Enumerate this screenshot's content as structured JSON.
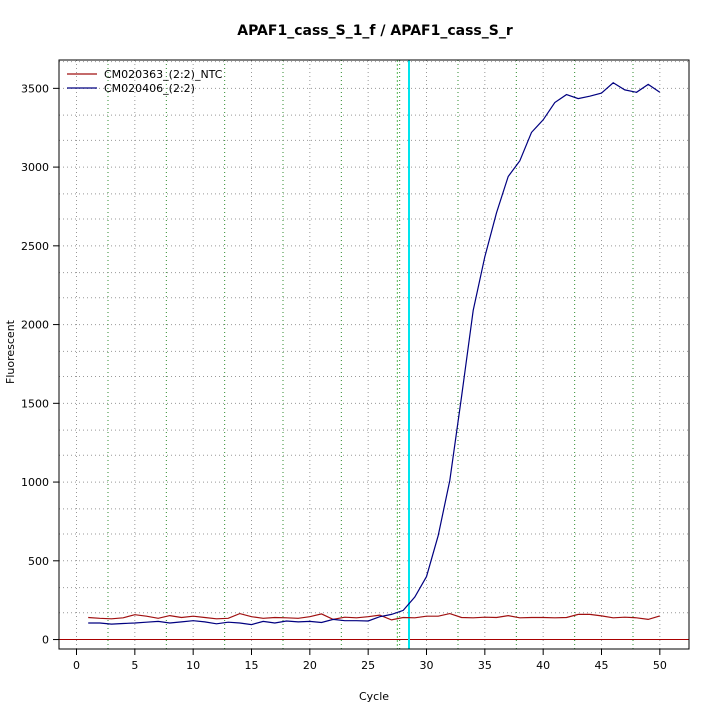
{
  "chart_data": {
    "type": "line",
    "title": "APAF1_cass_S_1_f / APAF1_cass_S_r",
    "xlabel": "Cycle",
    "ylabel": "Fluorescent",
    "xlim": [
      -1.5,
      52.5
    ],
    "ylim": [
      -60,
      3680
    ],
    "x_ticks": [
      0,
      5,
      10,
      15,
      20,
      25,
      30,
      35,
      40,
      45,
      50
    ],
    "y_ticks": [
      0,
      500,
      1000,
      1500,
      2000,
      2500,
      3000,
      3500
    ],
    "grid": true,
    "grid_x_minor": [
      2.7,
      7.7,
      12.7,
      17.7,
      22.7,
      27.7,
      32.7,
      37.7,
      42.7,
      47.7
    ],
    "grid_y_minor": [
      1.7,
      3.3
    ],
    "threshold_line": {
      "y": 0,
      "color": "#aa0000"
    },
    "cycle_marker": {
      "x": 28.5,
      "color": "#00e5ee"
    },
    "green_marker": {
      "x": 27.5,
      "color": "#55bb55"
    },
    "legend_position": "top-left",
    "x": [
      1,
      2,
      3,
      4,
      5,
      6,
      7,
      8,
      9,
      10,
      11,
      12,
      13,
      14,
      15,
      16,
      17,
      18,
      19,
      20,
      21,
      22,
      23,
      24,
      25,
      26,
      27,
      28,
      29,
      30,
      31,
      32,
      33,
      34,
      35,
      36,
      37,
      38,
      39,
      40,
      41,
      42,
      43,
      44,
      45,
      46,
      47,
      48,
      49,
      50
    ],
    "series": [
      {
        "name": "CM020363_(2:2)_NTC",
        "color": "#a01010",
        "values": [
          140,
          135,
          132,
          138,
          158,
          148,
          135,
          152,
          140,
          148,
          140,
          132,
          135,
          165,
          145,
          135,
          140,
          138,
          135,
          145,
          163,
          128,
          142,
          138,
          145,
          155,
          125,
          140,
          138,
          148,
          148,
          165,
          140,
          138,
          142,
          140,
          152,
          138,
          140,
          140,
          138,
          140,
          160,
          160,
          150,
          138,
          142,
          138,
          128,
          150
        ]
      },
      {
        "name": "CM020406_(2:2)",
        "color": "#000080",
        "values": [
          105,
          105,
          98,
          102,
          105,
          110,
          115,
          105,
          112,
          120,
          112,
          100,
          110,
          105,
          95,
          115,
          105,
          118,
          112,
          115,
          108,
          128,
          120,
          120,
          118,
          145,
          160,
          185,
          270,
          400,
          660,
          1010,
          1540,
          2090,
          2430,
          2710,
          2940,
          3040,
          3220,
          3300,
          3410,
          3460,
          3435,
          3450,
          3470,
          3535,
          3490,
          3475,
          3525,
          3475
        ]
      }
    ]
  }
}
